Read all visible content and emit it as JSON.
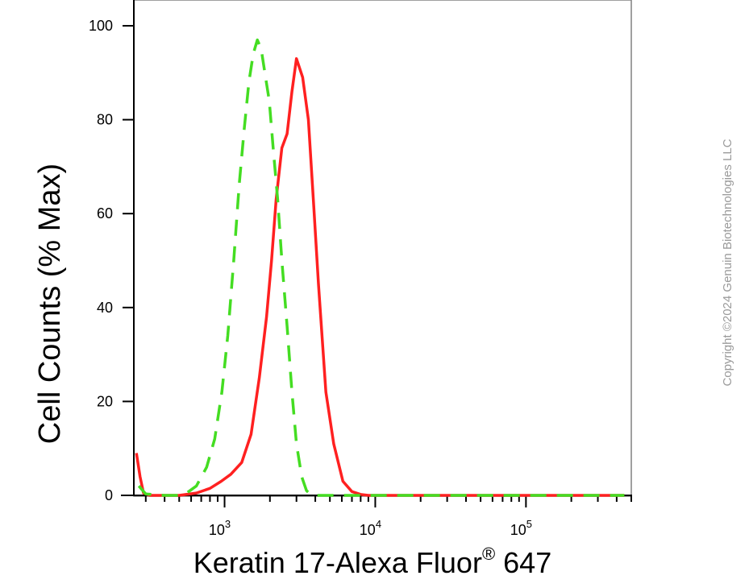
{
  "chart_data": {
    "type": "line",
    "title": "",
    "xlabel": {
      "main": "Keratin 17-Alexa Fluor",
      "sup": "®",
      "tail": " 647"
    },
    "ylabel": "Cell Counts (% Max)",
    "x_scale": "log",
    "xlim": [
      250,
      500000
    ],
    "ylim": [
      0,
      100
    ],
    "y_ticks": [
      "0",
      "20",
      "40",
      "60",
      "80",
      "100"
    ],
    "x_ticks": [
      {
        "base": "10",
        "exp": "3",
        "value": 1000
      },
      {
        "base": "10",
        "exp": "4",
        "value": 10000
      },
      {
        "base": "10",
        "exp": "5",
        "value": 100000
      }
    ],
    "grid": false,
    "legend": "none",
    "series": [
      {
        "color": "#ff2020",
        "style": "solid",
        "points": [
          [
            260,
            9
          ],
          [
            275,
            4
          ],
          [
            290,
            0.5
          ],
          [
            320,
            0
          ],
          [
            400,
            0
          ],
          [
            500,
            0
          ],
          [
            650,
            0.5
          ],
          [
            800,
            1.5
          ],
          [
            950,
            3
          ],
          [
            1100,
            4.5
          ],
          [
            1300,
            7
          ],
          [
            1500,
            13
          ],
          [
            1700,
            25
          ],
          [
            1900,
            38
          ],
          [
            2050,
            50
          ],
          [
            2200,
            63
          ],
          [
            2400,
            74
          ],
          [
            2600,
            77
          ],
          [
            2800,
            86
          ],
          [
            3000,
            93
          ],
          [
            3300,
            89
          ],
          [
            3600,
            80
          ],
          [
            3900,
            62
          ],
          [
            4200,
            45
          ],
          [
            4700,
            22
          ],
          [
            5300,
            11
          ],
          [
            6100,
            3
          ],
          [
            7000,
            0.8
          ],
          [
            8000,
            0.2
          ],
          [
            9000,
            0
          ],
          [
            20000,
            0
          ],
          [
            100000,
            0
          ],
          [
            450000,
            0
          ]
        ]
      },
      {
        "color": "#44dd22",
        "style": "dashed",
        "points": [
          [
            270,
            2
          ],
          [
            300,
            0.3
          ],
          [
            400,
            0
          ],
          [
            500,
            0
          ],
          [
            560,
            0.5
          ],
          [
            650,
            2
          ],
          [
            760,
            6
          ],
          [
            860,
            12
          ],
          [
            960,
            22
          ],
          [
            1050,
            34
          ],
          [
            1150,
            50
          ],
          [
            1250,
            66
          ],
          [
            1350,
            78
          ],
          [
            1450,
            88
          ],
          [
            1550,
            94
          ],
          [
            1650,
            97
          ],
          [
            1750,
            95
          ],
          [
            1850,
            90
          ],
          [
            1980,
            84
          ],
          [
            2100,
            74
          ],
          [
            2250,
            63
          ],
          [
            2400,
            50
          ],
          [
            2600,
            36
          ],
          [
            2800,
            22
          ],
          [
            3000,
            11
          ],
          [
            3250,
            4
          ],
          [
            3500,
            1
          ],
          [
            3800,
            0
          ],
          [
            4500,
            0
          ],
          [
            30000,
            0
          ],
          [
            450000,
            0
          ]
        ]
      }
    ]
  },
  "watermark": "Copyright ©2024 Genuin Biotechnologies LLC"
}
